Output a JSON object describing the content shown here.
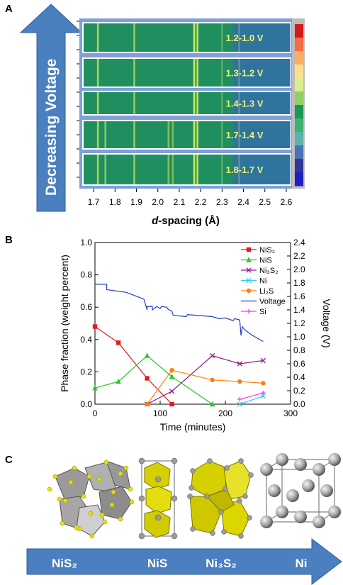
{
  "panels": {
    "a": {
      "letter": "A",
      "arrow_label": "Decreasing Voltage",
      "xlabel_italic": "d",
      "xlabel_rest": "-spacing (Å)",
      "xticks": [
        "1.7",
        "1.8",
        "1.9",
        "2.0",
        "2.1",
        "2.2",
        "2.3",
        "2.4",
        "2.5",
        "2.6"
      ],
      "strips": [
        {
          "label": "1.2-1.0 V"
        },
        {
          "label": "1.3-1.2 V"
        },
        {
          "label": "1.4-1.3 V"
        },
        {
          "label": "1.7-1.4 V"
        },
        {
          "label": "1.8-1.7 V"
        }
      ],
      "colorbar": [
        "#d7191c",
        "#f46d43",
        "#fdae61",
        "#fee08b",
        "#d9ef8b",
        "#91cf60",
        "#1a9850",
        "#3cb371",
        "#5ab4ac",
        "#4575b4",
        "#313695",
        "#1f1fbf"
      ]
    },
    "b": {
      "letter": "B"
    },
    "c": {
      "letter": "C",
      "phases": [
        "NiS₂",
        "NiS",
        "Ni₃S₂",
        "Ni"
      ]
    }
  },
  "chart_data": {
    "type": "line",
    "xlabel": "Time (minutes)",
    "ylabel": "Phase fraction (weight percent)",
    "y2label": "Voltage (V)",
    "xlim": [
      0,
      300
    ],
    "ylim": [
      0,
      1.0
    ],
    "y2lim": [
      0,
      2.4
    ],
    "xticks": [
      "0",
      "100",
      "200",
      "300"
    ],
    "yticks": [
      "0.0",
      "0.2",
      "0.4",
      "0.6",
      "0.8",
      "1.0"
    ],
    "y2ticks": [
      "0.0",
      "0.2",
      "0.4",
      "0.6",
      "0.8",
      "1.0",
      "1.2",
      "1.4",
      "1.6",
      "1.8",
      "2.0",
      "2.2",
      "2.4"
    ],
    "legend_position": "top-right",
    "series": [
      {
        "name": "NiS₂",
        "color": "#e41a1c",
        "marker": "square",
        "x": [
          0,
          36,
          80,
          118
        ],
        "y": [
          0.48,
          0.38,
          0.16,
          0.0
        ]
      },
      {
        "name": "NiS",
        "color": "#22cc22",
        "marker": "triangle",
        "x": [
          0,
          36,
          80,
          118,
          180
        ],
        "y": [
          0.1,
          0.14,
          0.3,
          0.17,
          0.0
        ]
      },
      {
        "name": "Ni₃S₂",
        "color": "#8b1a8b",
        "marker": "x",
        "x": [
          80,
          118,
          180,
          222,
          258
        ],
        "y": [
          0.0,
          0.08,
          0.3,
          0.25,
          0.27
        ]
      },
      {
        "name": "Ni",
        "color": "#33ccff",
        "marker": "x",
        "x": [
          222,
          258
        ],
        "y": [
          0.0,
          0.05
        ]
      },
      {
        "name": "Li₂S",
        "color": "#ff7f0e",
        "marker": "circle",
        "x": [
          80,
          118,
          180,
          222,
          258
        ],
        "y": [
          0.0,
          0.21,
          0.15,
          0.14,
          0.13
        ]
      },
      {
        "name": "Voltage",
        "color": "#1f3fbf",
        "marker": "none",
        "axis": "right",
        "x": [
          0,
          18,
          18,
          48,
          75,
          80,
          80,
          88,
          88,
          92,
          95,
          100,
          102,
          110,
          112,
          118,
          120,
          130,
          140,
          142,
          180,
          190,
          200,
          212,
          214,
          222,
          224,
          226,
          230,
          240,
          258
        ],
        "y": [
          1.78,
          1.78,
          1.7,
          1.66,
          1.56,
          1.4,
          1.45,
          1.45,
          1.4,
          1.43,
          1.45,
          1.42,
          1.45,
          1.44,
          1.41,
          1.38,
          1.32,
          1.31,
          1.3,
          1.33,
          1.3,
          1.27,
          1.28,
          1.24,
          1.27,
          1.25,
          1.02,
          1.15,
          1.1,
          1.03,
          0.93
        ]
      },
      {
        "name": "Si",
        "color": "#ff33ff",
        "marker": "plus",
        "x": [
          222,
          258
        ],
        "y": [
          0.03,
          0.07
        ]
      }
    ]
  }
}
